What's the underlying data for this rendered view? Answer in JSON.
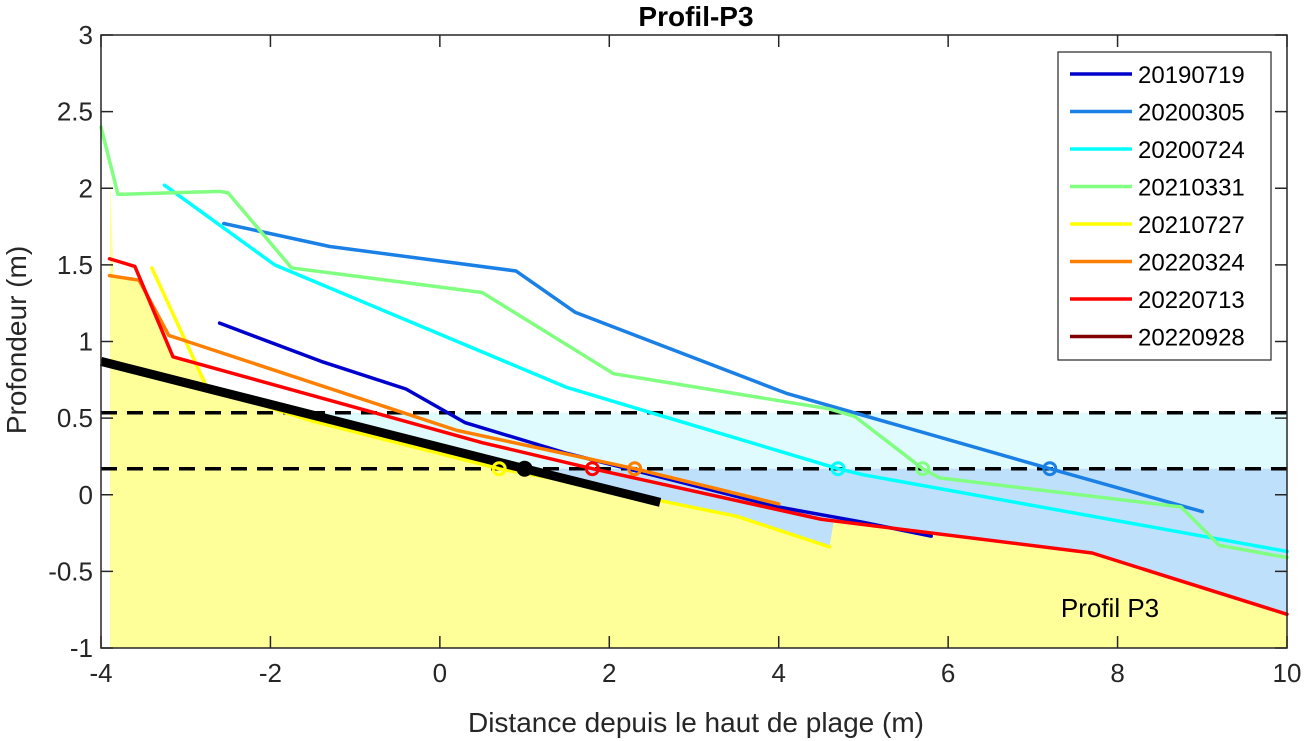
{
  "chart_data": {
    "type": "line",
    "title": "Profil-P3",
    "xlabel": "Distance depuis le haut de plage (m)",
    "ylabel": "Profondeur (m)",
    "xlim": [
      -4,
      10
    ],
    "ylim": [
      -1,
      3
    ],
    "xticks": [
      "-4",
      "-2",
      "0",
      "2",
      "4",
      "6",
      "8",
      "10"
    ],
    "yticks": [
      "-1",
      "-0.5",
      "0",
      "0.5",
      "1",
      "1.5",
      "2",
      "2.5",
      "3"
    ],
    "grid": false,
    "legend_position": "top-right",
    "annotation": "Profil P3",
    "fill_colors": {
      "sand": "#ffff99",
      "water_lower": "#bfe0fb",
      "water_upper": "#e0fbfd"
    },
    "reference_lines": [
      0.535,
      0.17
    ],
    "series": [
      {
        "name": "20190719",
        "color": "#0000cc",
        "x": [
          -2.6,
          -1.4,
          -0.4,
          0.3,
          1.5,
          4.0,
          5.0,
          5.8
        ],
        "y": [
          1.12,
          0.87,
          0.69,
          0.47,
          0.27,
          -0.08,
          -0.18,
          -0.27
        ],
        "marker": null
      },
      {
        "name": "20200305",
        "color": "#1a80e6",
        "x": [
          -2.55,
          -1.3,
          0.9,
          1.6,
          4.1,
          7.2,
          9.0
        ],
        "y": [
          1.77,
          1.62,
          1.46,
          1.19,
          0.66,
          0.17,
          -0.11
        ],
        "marker": [
          7.2,
          0.17
        ]
      },
      {
        "name": "20200724",
        "color": "#00ffff",
        "x": [
          -3.25,
          -1.95,
          1.5,
          4.7,
          5.0,
          10.0
        ],
        "y": [
          2.02,
          1.5,
          0.7,
          0.17,
          0.13,
          -0.37
        ],
        "marker": [
          4.7,
          0.17
        ]
      },
      {
        "name": "20210331",
        "color": "#80ff80",
        "x": [
          -4.0,
          -3.8,
          -2.6,
          -2.5,
          -1.75,
          0.5,
          2.05,
          4.6,
          4.9,
          5.7,
          5.9,
          8.75,
          9.2,
          10.0
        ],
        "y": [
          2.4,
          1.96,
          1.98,
          1.97,
          1.48,
          1.32,
          0.79,
          0.56,
          0.51,
          0.17,
          0.11,
          -0.08,
          -0.33,
          -0.41
        ],
        "marker": [
          5.7,
          0.17
        ]
      },
      {
        "name": "20210727",
        "color": "#ffff00",
        "x": [
          -3.4,
          -2.75,
          -1.5,
          0.7,
          1.6,
          2.7,
          3.5,
          4.6
        ],
        "y": [
          1.48,
          0.7,
          0.48,
          0.17,
          0.08,
          -0.05,
          -0.14,
          -0.34
        ],
        "marker": [
          0.7,
          0.17
        ]
      },
      {
        "name": "20220324",
        "color": "#ff8000",
        "x": [
          -3.9,
          -3.55,
          -3.2,
          0.2,
          2.3,
          4.0
        ],
        "y": [
          1.43,
          1.4,
          1.04,
          0.42,
          0.17,
          -0.06
        ],
        "marker": [
          2.3,
          0.17
        ]
      },
      {
        "name": "20220713",
        "color": "#ff0000",
        "x": [
          -3.9,
          -3.6,
          -3.15,
          0.5,
          1.8,
          4.5,
          7.7,
          10.0
        ],
        "y": [
          1.54,
          1.49,
          0.9,
          0.34,
          0.17,
          -0.16,
          -0.38,
          -0.78
        ],
        "marker": [
          1.8,
          0.17
        ]
      },
      {
        "name": "20220928",
        "color": "#800000",
        "x": [],
        "y": [],
        "marker": null
      }
    ],
    "reference_profile": {
      "color": "#000000",
      "x": [
        -4.0,
        1.0,
        2.6
      ],
      "y": [
        0.87,
        0.17,
        -0.05
      ],
      "marker": [
        1.0,
        0.17
      ]
    }
  }
}
